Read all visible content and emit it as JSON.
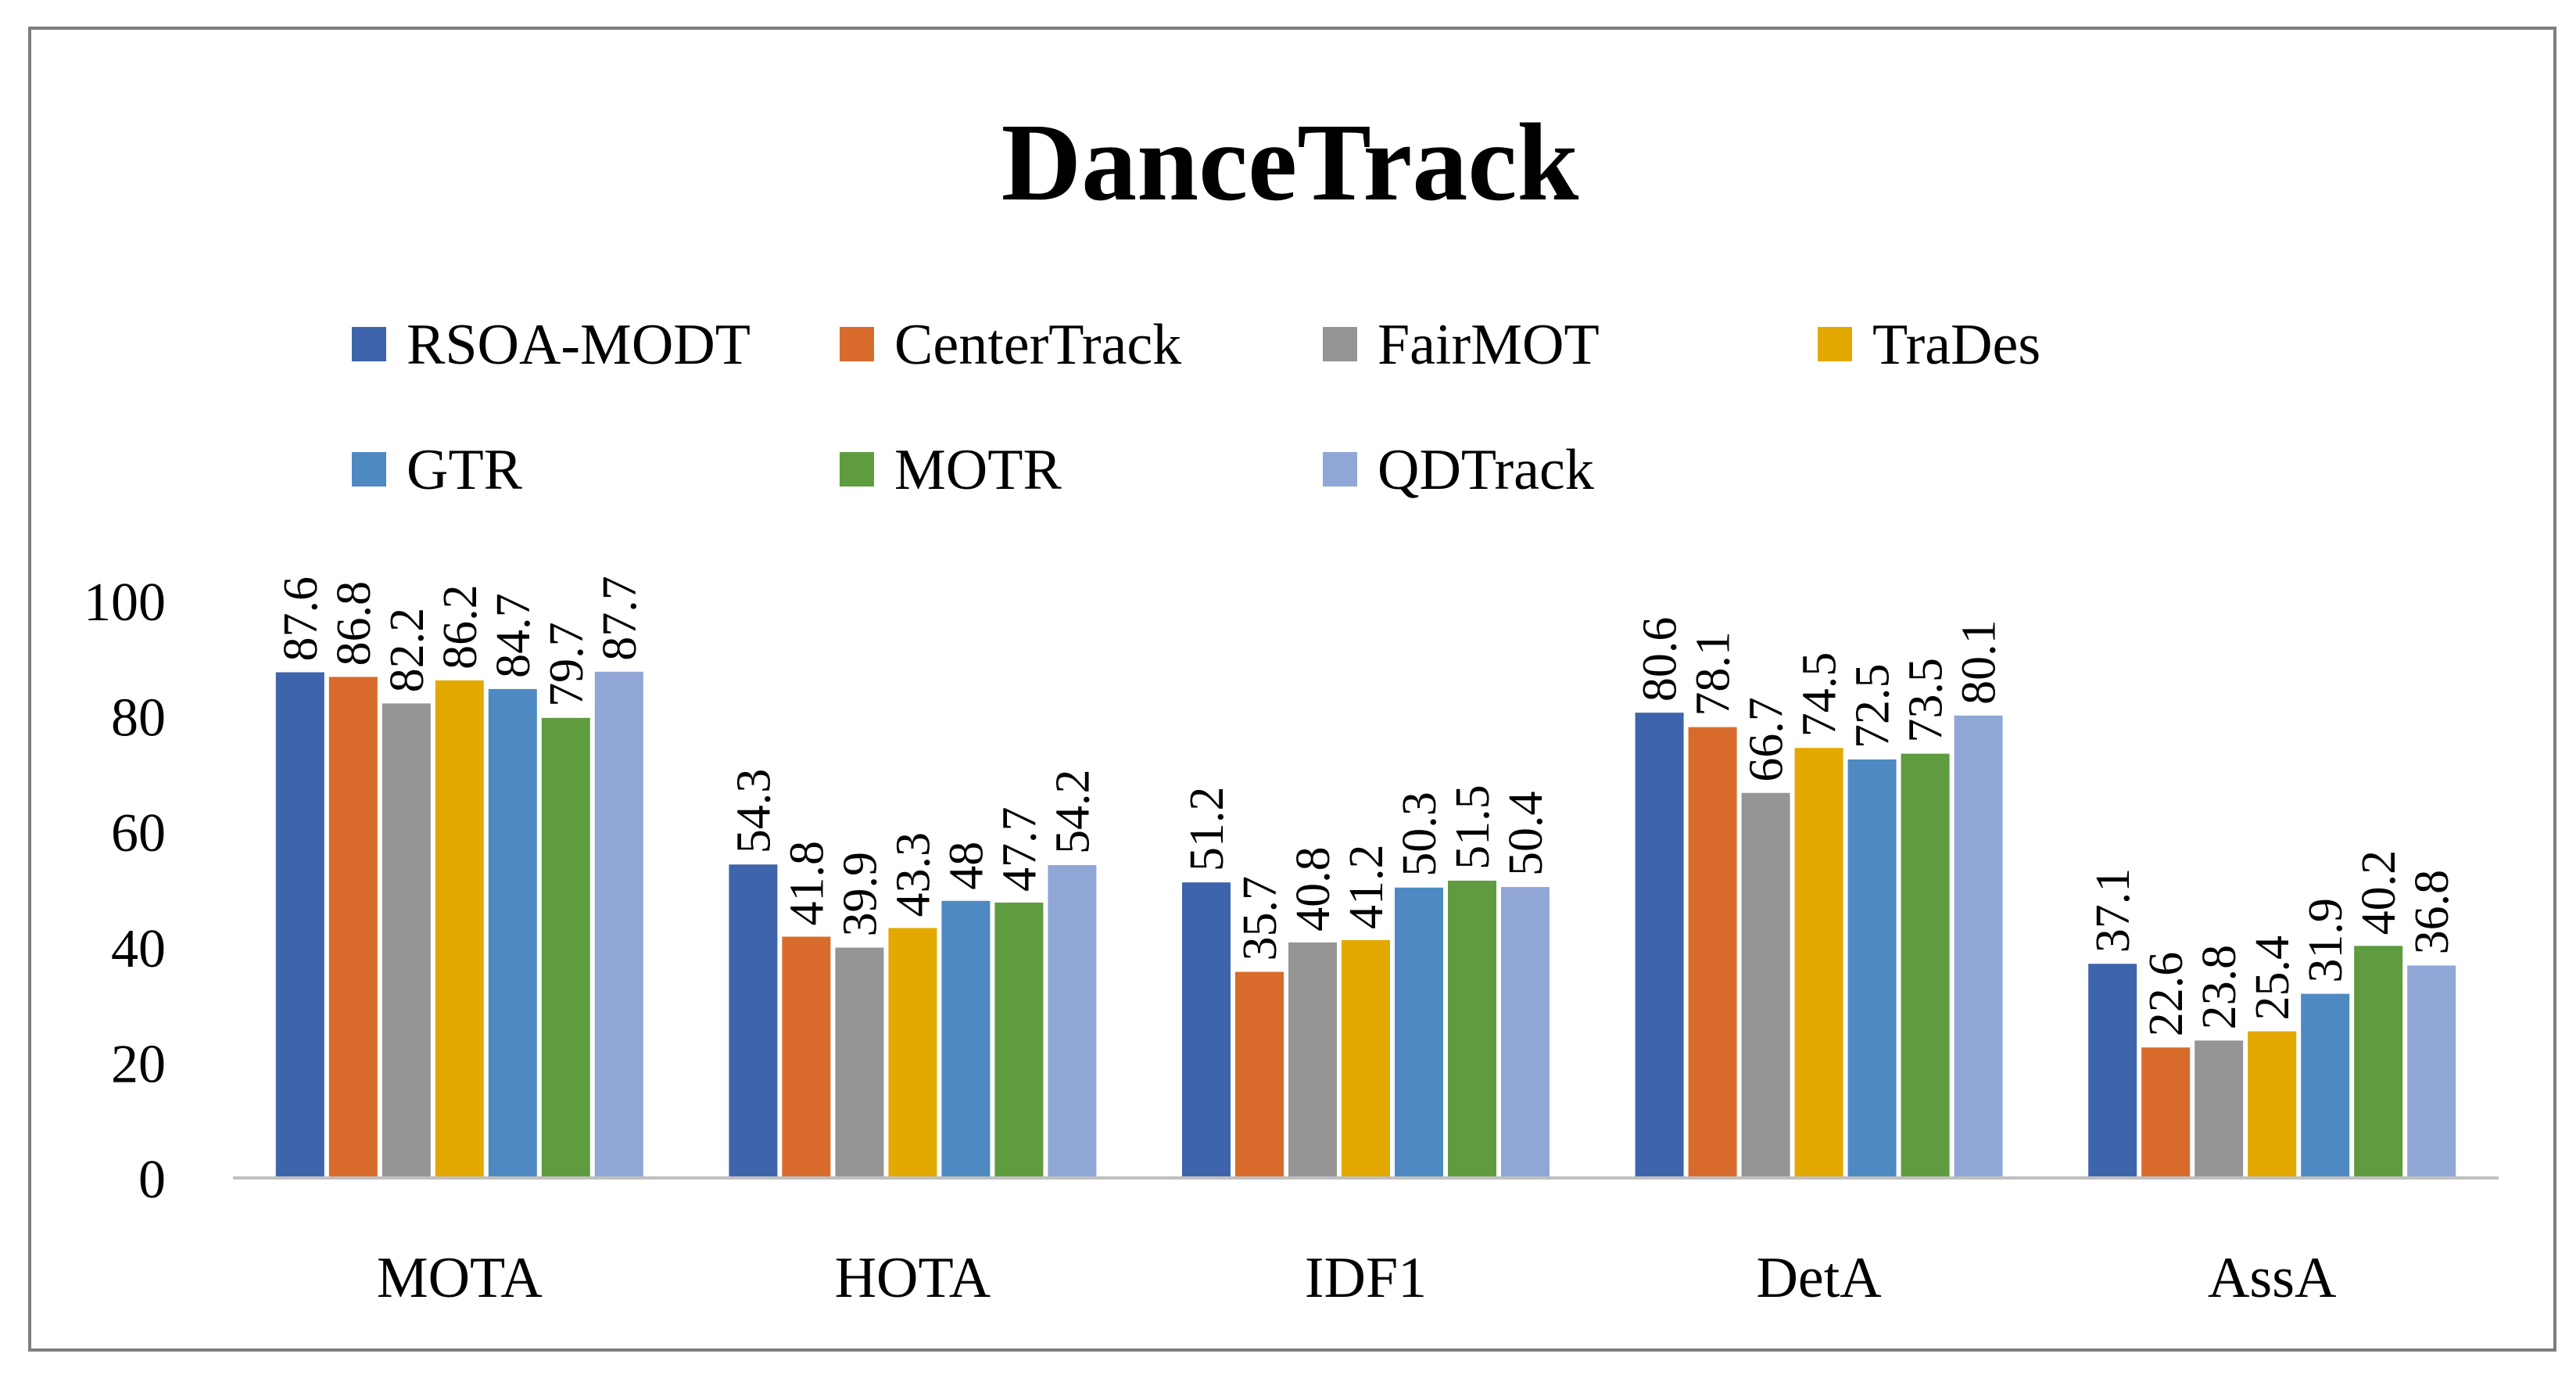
{
  "chart_data": {
    "type": "bar",
    "title": "DanceTrack",
    "xlabel": "",
    "ylabel": "",
    "ylim": [
      0,
      100
    ],
    "yticks": [
      "0",
      "20",
      "40",
      "60",
      "80",
      "100"
    ],
    "grid": false,
    "legend_position": "top",
    "categories": [
      "MOTA",
      "HOTA",
      "IDF1",
      "DetA",
      "AssA"
    ],
    "series": [
      {
        "name": "RSOA-MODT",
        "color": "#3e64ab",
        "values": [
          87.6,
          54.3,
          51.2,
          80.6,
          37.1
        ],
        "labels": [
          "87.6",
          "54.3",
          "51.2",
          "80.6",
          "37.1"
        ]
      },
      {
        "name": "CenterTrack",
        "color": "#d86b2b",
        "values": [
          86.8,
          41.8,
          35.7,
          78.1,
          22.6
        ],
        "labels": [
          "86.8",
          "41.8",
          "35.7",
          "78.1",
          "22.6"
        ]
      },
      {
        "name": "FairMOT",
        "color": "#959595",
        "values": [
          82.2,
          39.9,
          40.8,
          66.7,
          23.8
        ],
        "labels": [
          "82.2",
          "39.9",
          "40.8",
          "66.7",
          "23.8"
        ]
      },
      {
        "name": "TraDes",
        "color": "#e3a900",
        "values": [
          86.2,
          43.3,
          41.2,
          74.5,
          25.4
        ],
        "labels": [
          "86.2",
          "43.3",
          "41.2",
          "74.5",
          "25.4"
        ]
      },
      {
        "name": "GTR",
        "color": "#4e89c2",
        "values": [
          84.7,
          48,
          50.3,
          72.5,
          31.9
        ],
        "labels": [
          "84.7",
          "48",
          "50.3",
          "72.5",
          "31.9"
        ]
      },
      {
        "name": "MOTR",
        "color": "#5f9b3f",
        "values": [
          79.7,
          47.7,
          51.5,
          73.5,
          40.2
        ],
        "labels": [
          "79.7",
          "47.7",
          "51.5",
          "73.5",
          "40.2"
        ]
      },
      {
        "name": "QDTrack",
        "color": "#91a7d8",
        "values": [
          87.7,
          54.2,
          50.4,
          80.1,
          36.8
        ],
        "labels": [
          "87.7",
          "54.2",
          "50.4",
          "80.1",
          "36.8"
        ]
      }
    ]
  }
}
